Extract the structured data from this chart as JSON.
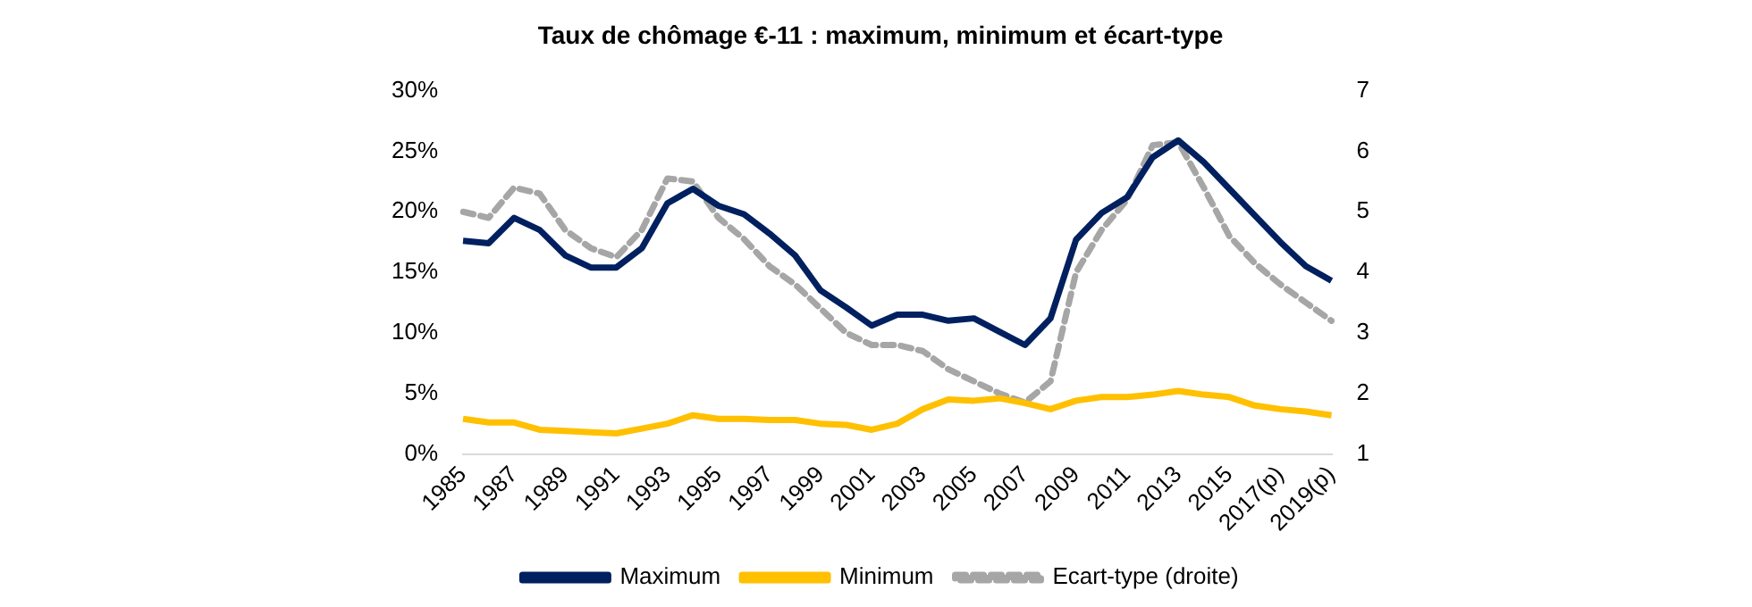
{
  "chart_data": {
    "type": "line",
    "title": "Taux de chômage €-11 : maximum, minimum et écart-type",
    "categories": [
      "1985",
      null,
      "1987",
      null,
      "1989",
      null,
      "1991",
      null,
      "1993",
      null,
      "1995",
      null,
      "1997",
      null,
      "1999",
      null,
      "2001",
      null,
      "2003",
      null,
      "2005",
      null,
      "2007",
      null,
      "2009",
      null,
      "2011",
      null,
      "2013",
      null,
      "2015",
      null,
      "2017(p)",
      null,
      "2019(p)"
    ],
    "series": [
      {
        "name": "Maximum",
        "color": "#002060",
        "values": [
          17.6,
          17.4,
          19.5,
          18.5,
          16.4,
          15.4,
          15.4,
          17.0,
          20.7,
          21.9,
          20.5,
          19.8,
          18.2,
          16.4,
          13.5,
          12.1,
          10.6,
          11.5,
          11.5,
          11.0,
          11.2,
          10.1,
          9.0,
          11.2,
          17.7,
          19.9,
          21.2,
          24.5,
          25.9,
          24.1,
          21.9,
          19.7,
          17.5,
          15.5,
          14.3
        ]
      },
      {
        "name": "Minimum",
        "color": "#ffc000",
        "values": [
          2.9,
          2.6,
          2.6,
          2.0,
          1.9,
          1.8,
          1.7,
          2.1,
          2.5,
          3.2,
          2.9,
          2.9,
          2.8,
          2.8,
          2.5,
          2.4,
          2.0,
          2.5,
          3.7,
          4.5,
          4.4,
          4.6,
          4.2,
          3.7,
          4.4,
          4.7,
          4.7,
          4.9,
          5.2,
          4.9,
          4.7,
          4.0,
          3.7,
          3.5,
          3.2
        ]
      },
      {
        "name": "Ecart-type (droite)",
        "color": "#a6a6a6",
        "axis": "y2",
        "line_style": "dashed",
        "values": [
          5.0,
          4.9,
          5.4,
          5.3,
          4.7,
          4.4,
          4.25,
          4.7,
          5.55,
          5.5,
          4.9,
          4.55,
          4.1,
          3.8,
          3.4,
          3.0,
          2.8,
          2.8,
          2.7,
          2.4,
          2.2,
          2.0,
          1.85,
          2.2,
          4.0,
          4.7,
          5.2,
          6.1,
          6.15,
          5.4,
          4.6,
          4.15,
          3.8,
          3.5,
          3.2
        ]
      }
    ],
    "ylim": [
      0,
      30
    ],
    "yticks": [
      {
        "value": 0,
        "label": "0%"
      },
      {
        "value": 5,
        "label": "5%"
      },
      {
        "value": 10,
        "label": "10%"
      },
      {
        "value": 15,
        "label": "15%"
      },
      {
        "value": 20,
        "label": "20%"
      },
      {
        "value": 25,
        "label": "25%"
      },
      {
        "value": 30,
        "label": "30%"
      }
    ],
    "y2lim": [
      1,
      7
    ],
    "y2ticks": [
      1,
      2,
      3,
      4,
      5,
      6,
      7
    ],
    "grid": false,
    "legend": "bottom",
    "marker": "none",
    "line_style": "solid"
  }
}
